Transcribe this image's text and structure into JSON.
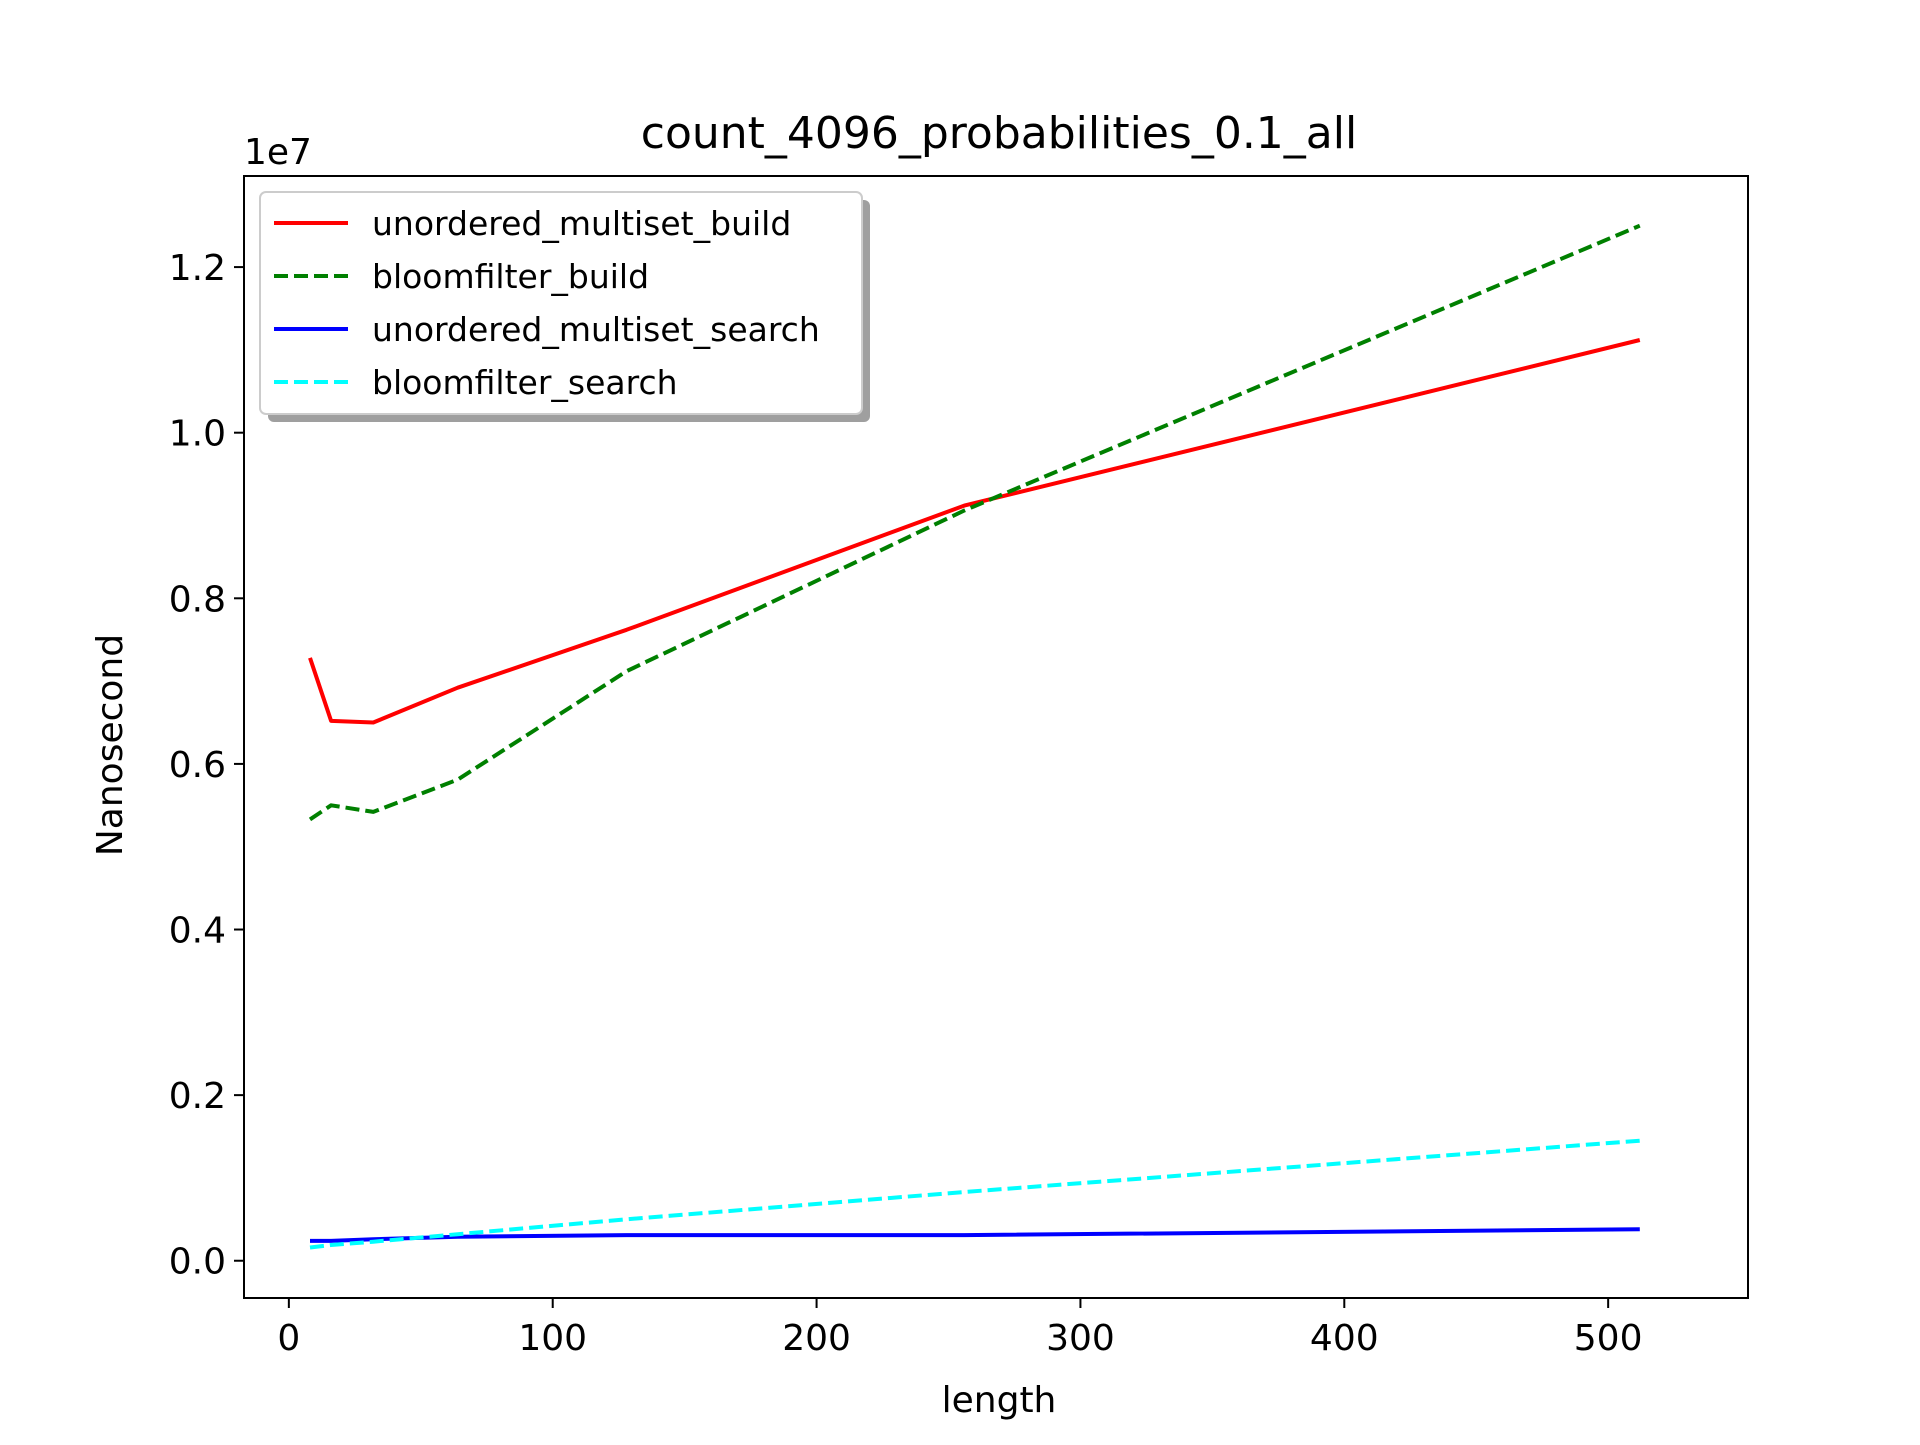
{
  "chart_data": {
    "type": "line",
    "title": "count_4096_probabilities_0.1_all",
    "xlabel": "length",
    "ylabel": "Nanosecond",
    "y_offset_label": "1e7",
    "xlim": [
      -17,
      553
    ],
    "ylim": [
      -0.045,
      1.31
    ],
    "xticks": [
      0,
      100,
      200,
      300,
      400,
      500
    ],
    "yticks": [
      0.0,
      0.2,
      0.4,
      0.6,
      0.8,
      1.0,
      1.2
    ],
    "ytick_labels": [
      "0.0",
      "0.2",
      "0.4",
      "0.6",
      "0.8",
      "1.0",
      "1.2"
    ],
    "grid": false,
    "legend_position": "top-left",
    "x": [
      8,
      16,
      32,
      64,
      128,
      256,
      512
    ],
    "series": [
      {
        "name": "unordered_multiset_build",
        "color": "#ff0000",
        "dash": "solid",
        "values": [
          0.728,
          0.652,
          0.65,
          0.692,
          0.762,
          0.912,
          1.112
        ]
      },
      {
        "name": "bloomfilter_build",
        "color": "#008000",
        "dash": "dashed",
        "values": [
          0.533,
          0.55,
          0.542,
          0.581,
          0.712,
          0.906,
          1.25
        ]
      },
      {
        "name": "unordered_multiset_search",
        "color": "#0000ff",
        "dash": "solid",
        "values": [
          0.024,
          0.024,
          0.026,
          0.029,
          0.031,
          0.031,
          0.038
        ]
      },
      {
        "name": "bloomfilter_search",
        "color": "#00ffff",
        "dash": "dashed",
        "values": [
          0.016,
          0.019,
          0.023,
          0.032,
          0.05,
          0.083,
          0.145
        ]
      }
    ]
  }
}
